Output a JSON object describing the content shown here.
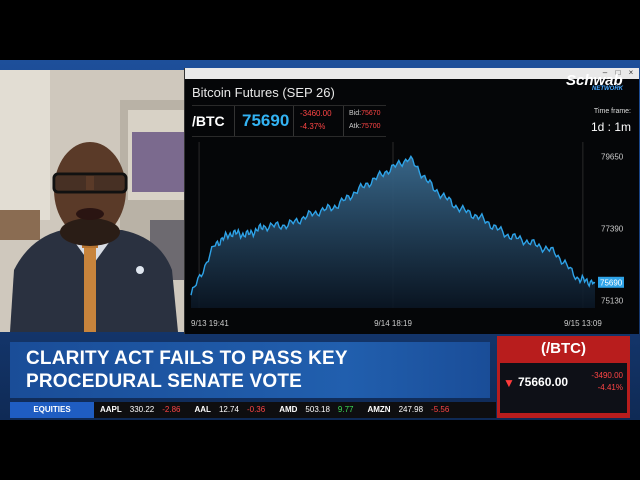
{
  "network": {
    "name": "Schwab",
    "sub": "NETWORK"
  },
  "chart_window": {
    "title": "Bitcoin Futures (SEP 26)",
    "symbol": "/BTC",
    "last": "75690",
    "change": "-3460.00",
    "change_pct": "-4.37%",
    "bid_label": "Bid:",
    "bid": "75670",
    "ask_label": "Atk:",
    "ask": "75700",
    "timeframe_label": "Time frame:",
    "timeframe": "1d : 1m"
  },
  "chart_data": {
    "type": "area",
    "title": "Bitcoin Futures (SEP 26)",
    "x_ticks": [
      "9/13 19:41",
      "9/14 18:19",
      "9/15 13:09"
    ],
    "y_ticks": [
      "79650",
      "77390",
      "75130"
    ],
    "ylim": [
      74900,
      80100
    ],
    "last_label": "75690",
    "x": [
      0,
      6,
      10,
      14,
      18,
      24,
      30,
      36,
      42,
      48,
      54,
      60,
      66,
      72,
      78,
      84,
      90,
      96,
      100
    ],
    "values": [
      75300,
      76900,
      77250,
      77200,
      77450,
      77500,
      77850,
      78100,
      78650,
      79150,
      79600,
      78650,
      78050,
      77700,
      77200,
      76950,
      76650,
      75800,
      75690
    ]
  },
  "headline": {
    "line1": "CLARITY ACT FAILS TO PASS KEY",
    "line2": "PROCEDURAL SENATE VOTE"
  },
  "ticker": {
    "label": "EQUITIES",
    "items": [
      {
        "sym": "AAPL",
        "price": "330.22",
        "chg": "-2.86",
        "color": "#ff4545"
      },
      {
        "sym": "AAL",
        "price": "12.74",
        "chg": "-0.36",
        "color": "#ff4545"
      },
      {
        "sym": "AMD",
        "price": "503.18",
        "chg": "9.77",
        "color": "#3ddc55"
      },
      {
        "sym": "AMZN",
        "price": "247.98",
        "chg": "-5.56",
        "color": "#ff4545"
      }
    ]
  },
  "quote_box": {
    "symbol": "(/BTC)",
    "arrow": "▼",
    "price": "75660.00",
    "change": "-3490.00",
    "change_pct": "-4.41%"
  },
  "colors": {
    "accent_red": "#b81d1d",
    "line": "#2ea3e8",
    "down": "#ff4545",
    "up": "#3ddc55"
  }
}
